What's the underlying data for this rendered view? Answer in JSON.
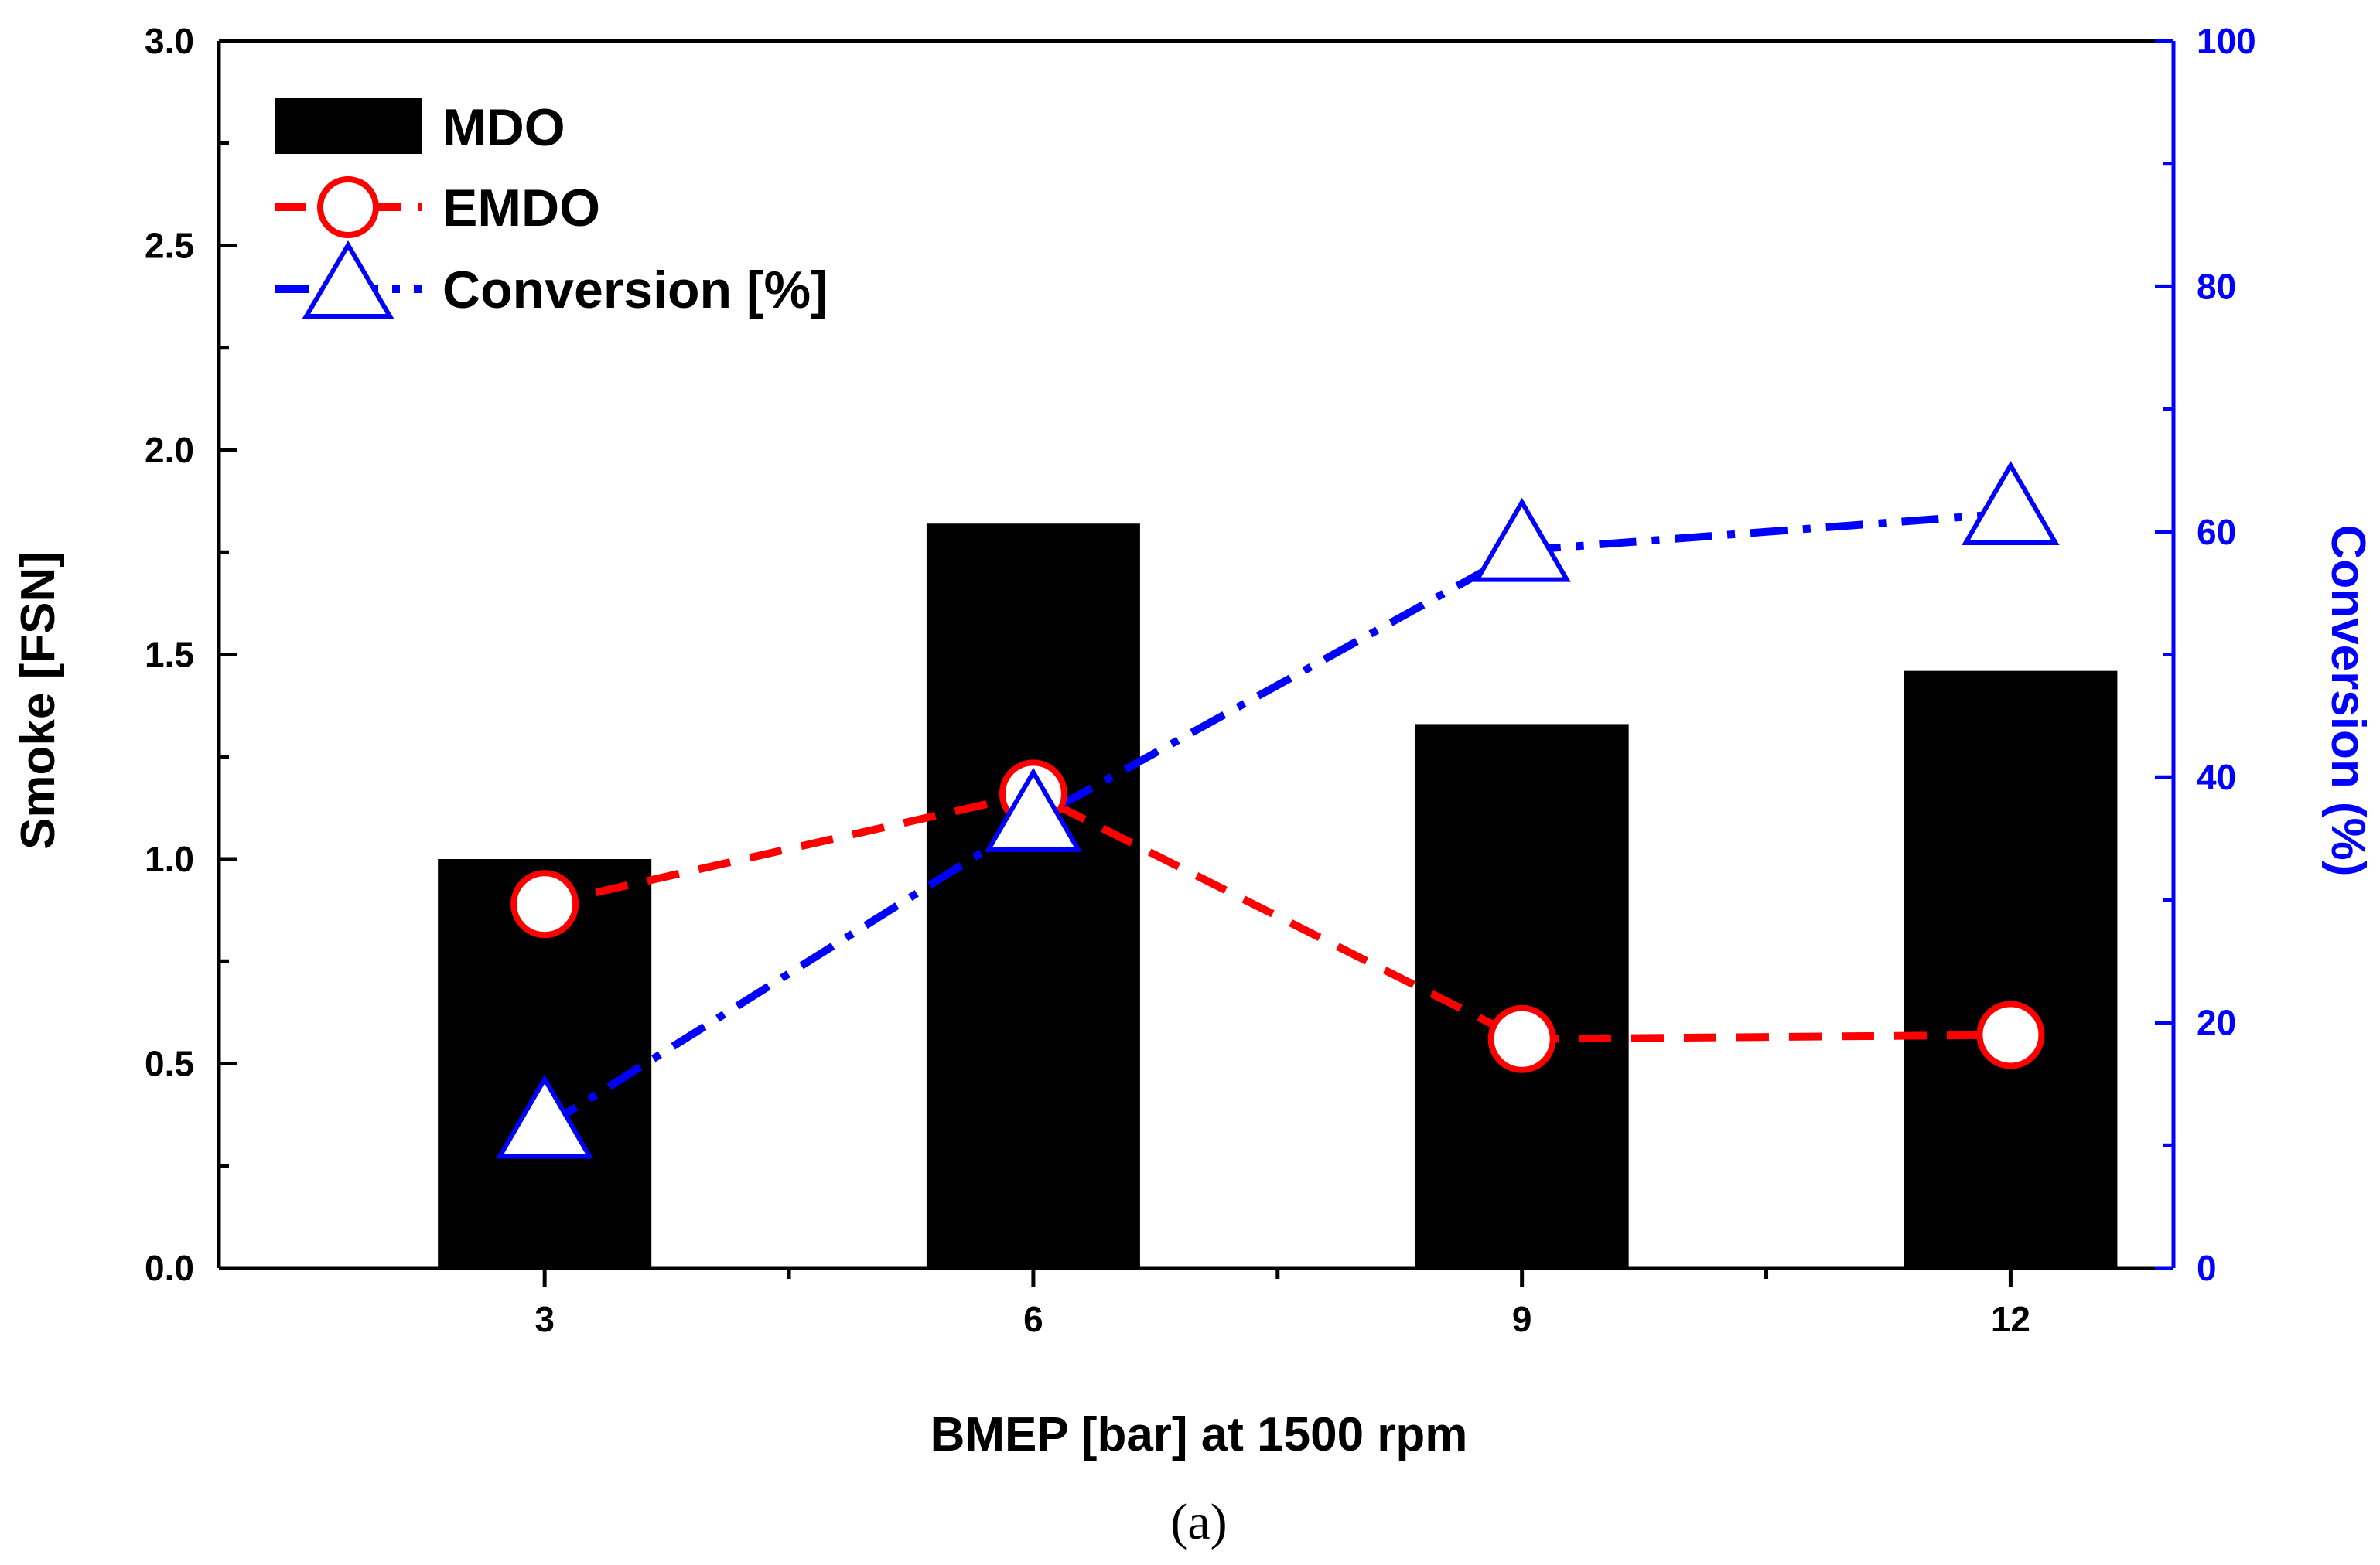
{
  "chart_data": {
    "type": "bar",
    "xlabel": "BMEP [bar] at 1500 rpm",
    "ylabel_left": "Smoke [FSN]",
    "ylabel_right": "Conversion (%)",
    "caption": "(a)",
    "x_ticks": [
      "3",
      "6",
      "9",
      "12"
    ],
    "x_values": [
      3,
      6,
      9,
      12
    ],
    "xlim": [
      1,
      13
    ],
    "ylim_left": [
      0,
      3.0
    ],
    "ylim_right": [
      0,
      100
    ],
    "y_ticks_left": [
      "0.0",
      "0.5",
      "1.0",
      "1.5",
      "2.0",
      "2.5",
      "3.0"
    ],
    "y_ticks_right": [
      "0",
      "20",
      "40",
      "60",
      "80",
      "100"
    ],
    "legend_position": "top-left",
    "grid": false,
    "series": [
      {
        "name": "MDO",
        "kind": "bar",
        "axis": "left",
        "color": "#000000",
        "values": [
          1.0,
          1.82,
          1.33,
          1.46
        ]
      },
      {
        "name": "EMDO",
        "kind": "line",
        "axis": "left",
        "color": "#ff0000",
        "marker": "circle",
        "linestyle": "dashed",
        "values": [
          0.89,
          1.16,
          0.56,
          0.57
        ]
      },
      {
        "name": "Conversion [%]",
        "kind": "line",
        "axis": "right",
        "color": "#0000ff",
        "marker": "triangle",
        "linestyle": "dash-dot",
        "values": [
          11.5,
          36.5,
          58.5,
          61.5
        ]
      }
    ]
  }
}
